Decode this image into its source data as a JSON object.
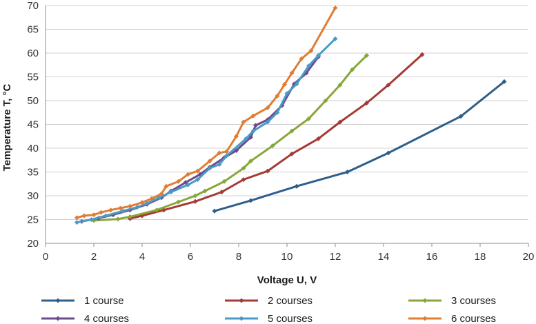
{
  "chart_data": {
    "type": "line",
    "title": "",
    "xlabel": "Voltage U, V",
    "ylabel": "Temperature T, °C",
    "xlim": [
      0,
      20
    ],
    "ylim": [
      20,
      70
    ],
    "xticks": [
      0,
      2,
      4,
      6,
      8,
      10,
      12,
      14,
      16,
      18,
      20
    ],
    "yticks": [
      20,
      25,
      30,
      35,
      40,
      45,
      50,
      55,
      60,
      65,
      70
    ],
    "grid": "horizontal",
    "legend_position": "bottom",
    "series": [
      {
        "name": "1 course",
        "color": "#2e5f8a",
        "points": [
          [
            7.0,
            26.8
          ],
          [
            8.5,
            29.0
          ],
          [
            10.4,
            32.0
          ],
          [
            12.5,
            35.0
          ],
          [
            14.2,
            39.0
          ],
          [
            17.2,
            46.7
          ],
          [
            19.0,
            54.0
          ]
        ]
      },
      {
        "name": "2 courses",
        "color": "#a33a36",
        "points": [
          [
            3.5,
            25.2
          ],
          [
            4.0,
            25.8
          ],
          [
            4.9,
            27.0
          ],
          [
            6.2,
            28.8
          ],
          [
            7.3,
            30.8
          ],
          [
            8.2,
            33.4
          ],
          [
            9.2,
            35.2
          ],
          [
            10.2,
            38.8
          ],
          [
            11.3,
            42.0
          ],
          [
            12.2,
            45.5
          ],
          [
            13.3,
            49.5
          ],
          [
            14.2,
            53.3
          ],
          [
            15.6,
            59.7
          ]
        ]
      },
      {
        "name": "3 courses",
        "color": "#87a73a",
        "points": [
          [
            2.0,
            24.8
          ],
          [
            3.0,
            25.1
          ],
          [
            3.5,
            25.6
          ],
          [
            4.6,
            27.0
          ],
          [
            5.5,
            28.7
          ],
          [
            6.2,
            30.0
          ],
          [
            6.6,
            31.0
          ],
          [
            7.4,
            33.0
          ],
          [
            8.2,
            35.8
          ],
          [
            8.5,
            37.3
          ],
          [
            9.4,
            40.5
          ],
          [
            10.2,
            43.6
          ],
          [
            10.9,
            46.2
          ],
          [
            11.6,
            50.0
          ],
          [
            12.2,
            53.3
          ],
          [
            12.7,
            56.5
          ],
          [
            13.3,
            59.5
          ]
        ]
      },
      {
        "name": "4 courses",
        "color": "#6b4a8f",
        "points": [
          [
            1.5,
            24.6
          ],
          [
            2.2,
            25.3
          ],
          [
            2.8,
            26.0
          ],
          [
            3.5,
            27.0
          ],
          [
            4.2,
            28.2
          ],
          [
            4.8,
            29.6
          ],
          [
            5.2,
            31.0
          ],
          [
            5.8,
            32.8
          ],
          [
            6.4,
            34.5
          ],
          [
            6.8,
            36.0
          ],
          [
            7.4,
            38.0
          ],
          [
            7.9,
            39.5
          ],
          [
            8.5,
            42.3
          ],
          [
            8.7,
            44.8
          ],
          [
            9.2,
            46.0
          ],
          [
            9.8,
            49.0
          ],
          [
            10.3,
            53.5
          ],
          [
            10.8,
            55.8
          ],
          [
            11.3,
            59.2
          ]
        ]
      },
      {
        "name": "5 courses",
        "color": "#4a9ac6",
        "points": [
          [
            1.3,
            24.4
          ],
          [
            1.9,
            25.0
          ],
          [
            2.5,
            25.8
          ],
          [
            3.2,
            26.8
          ],
          [
            3.8,
            27.6
          ],
          [
            4.2,
            28.4
          ],
          [
            4.7,
            29.6
          ],
          [
            5.2,
            30.8
          ],
          [
            5.9,
            32.3
          ],
          [
            6.3,
            33.4
          ],
          [
            6.8,
            35.8
          ],
          [
            7.2,
            36.6
          ],
          [
            7.5,
            38.4
          ],
          [
            8.3,
            42.0
          ],
          [
            8.6,
            43.6
          ],
          [
            9.2,
            45.5
          ],
          [
            9.6,
            47.5
          ],
          [
            10.0,
            51.5
          ],
          [
            10.4,
            53.5
          ],
          [
            10.9,
            57.3
          ],
          [
            11.3,
            59.5
          ],
          [
            12.0,
            63.0
          ]
        ]
      },
      {
        "name": "6 courses",
        "color": "#e07d32",
        "points": [
          [
            1.3,
            25.4
          ],
          [
            1.6,
            25.8
          ],
          [
            2.0,
            26.0
          ],
          [
            2.3,
            26.5
          ],
          [
            2.7,
            27.0
          ],
          [
            3.1,
            27.4
          ],
          [
            3.5,
            27.8
          ],
          [
            4.0,
            28.6
          ],
          [
            4.4,
            29.4
          ],
          [
            4.8,
            30.4
          ],
          [
            5.0,
            32.0
          ],
          [
            5.5,
            33.0
          ],
          [
            5.9,
            34.5
          ],
          [
            6.3,
            35.2
          ],
          [
            6.8,
            37.3
          ],
          [
            7.2,
            39.0
          ],
          [
            7.5,
            39.3
          ],
          [
            7.9,
            42.5
          ],
          [
            8.2,
            45.5
          ],
          [
            8.6,
            46.8
          ],
          [
            9.2,
            48.5
          ],
          [
            9.6,
            51.0
          ],
          [
            9.9,
            53.4
          ],
          [
            10.2,
            55.8
          ],
          [
            10.6,
            58.8
          ],
          [
            11.0,
            60.5
          ],
          [
            12.0,
            69.5
          ]
        ]
      }
    ]
  }
}
